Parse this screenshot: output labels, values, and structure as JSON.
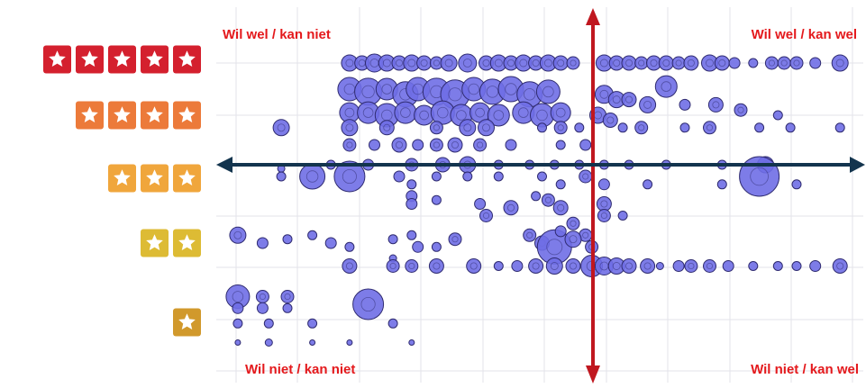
{
  "chart_data": {
    "type": "scatter",
    "title": "",
    "xlabel": "",
    "ylabel": "",
    "y_levels": [
      5,
      4,
      3,
      2,
      1
    ],
    "ylim": [
      0.5,
      5.5
    ],
    "xlim": [
      0,
      100
    ],
    "grid": true,
    "legend": "none",
    "quadrant_labels": {
      "top_left": "Wil wel / kan niet",
      "top_right": "Wil wel / kan wel",
      "bottom_left": "Wil niet / kan niet",
      "bottom_right": "Wil niet / kan wel"
    },
    "y_tick_stars": [
      {
        "level": 5,
        "stars": 5,
        "color": "#d4202e"
      },
      {
        "level": 4,
        "stars": 4,
        "color": "#ec7a3a"
      },
      {
        "level": 3,
        "stars": 3,
        "color": "#f0a63c"
      },
      {
        "level": 2,
        "stars": 2,
        "color": "#ddbb34"
      },
      {
        "level": 1,
        "stars": 1,
        "color": "#d1992c"
      }
    ],
    "dividers": {
      "vertical_x": 58.2,
      "horizontal_y": 3.0,
      "vertical_color": "#c0171f",
      "horizontal_color": "#13344e"
    },
    "bubble_color": "#6f6ee6",
    "bubble_edge": "#2f2b70",
    "points": [
      {
        "x": 19,
        "y": 5.0,
        "r": 9
      },
      {
        "x": 21,
        "y": 5.0,
        "r": 8
      },
      {
        "x": 23,
        "y": 5.0,
        "r": 10
      },
      {
        "x": 25,
        "y": 5.0,
        "r": 9
      },
      {
        "x": 27,
        "y": 5.0,
        "r": 8
      },
      {
        "x": 29,
        "y": 5.0,
        "r": 9
      },
      {
        "x": 31,
        "y": 5.0,
        "r": 8
      },
      {
        "x": 33,
        "y": 5.0,
        "r": 7
      },
      {
        "x": 35,
        "y": 5.0,
        "r": 9
      },
      {
        "x": 38,
        "y": 5.0,
        "r": 10
      },
      {
        "x": 41,
        "y": 5.0,
        "r": 8
      },
      {
        "x": 43,
        "y": 5.0,
        "r": 9
      },
      {
        "x": 45,
        "y": 5.0,
        "r": 8
      },
      {
        "x": 47,
        "y": 5.0,
        "r": 9
      },
      {
        "x": 49,
        "y": 5.0,
        "r": 8
      },
      {
        "x": 51,
        "y": 5.0,
        "r": 9
      },
      {
        "x": 53,
        "y": 5.0,
        "r": 8
      },
      {
        "x": 55,
        "y": 5.0,
        "r": 7
      },
      {
        "x": 60,
        "y": 5.0,
        "r": 9
      },
      {
        "x": 62,
        "y": 5.0,
        "r": 8
      },
      {
        "x": 64,
        "y": 5.0,
        "r": 8
      },
      {
        "x": 66,
        "y": 5.0,
        "r": 7
      },
      {
        "x": 68,
        "y": 5.0,
        "r": 8
      },
      {
        "x": 70,
        "y": 5.0,
        "r": 8
      },
      {
        "x": 72,
        "y": 5.0,
        "r": 7
      },
      {
        "x": 74,
        "y": 5.0,
        "r": 8
      },
      {
        "x": 77,
        "y": 5.0,
        "r": 9
      },
      {
        "x": 79,
        "y": 5.0,
        "r": 8
      },
      {
        "x": 81,
        "y": 5.0,
        "r": 6
      },
      {
        "x": 84,
        "y": 5.0,
        "r": 5
      },
      {
        "x": 87,
        "y": 5.0,
        "r": 7
      },
      {
        "x": 89,
        "y": 5.0,
        "r": 7
      },
      {
        "x": 91,
        "y": 5.0,
        "r": 7
      },
      {
        "x": 94,
        "y": 5.0,
        "r": 6
      },
      {
        "x": 98,
        "y": 5.0,
        "r": 9
      },
      {
        "x": 19,
        "y": 4.5,
        "r": 13
      },
      {
        "x": 22,
        "y": 4.45,
        "r": 15
      },
      {
        "x": 25,
        "y": 4.5,
        "r": 12
      },
      {
        "x": 28,
        "y": 4.4,
        "r": 14
      },
      {
        "x": 30,
        "y": 4.5,
        "r": 13
      },
      {
        "x": 33,
        "y": 4.45,
        "r": 15
      },
      {
        "x": 36,
        "y": 4.4,
        "r": 16
      },
      {
        "x": 39,
        "y": 4.5,
        "r": 13
      },
      {
        "x": 42,
        "y": 4.45,
        "r": 14
      },
      {
        "x": 45,
        "y": 4.5,
        "r": 14
      },
      {
        "x": 48,
        "y": 4.4,
        "r": 14
      },
      {
        "x": 51,
        "y": 4.45,
        "r": 13
      },
      {
        "x": 19,
        "y": 4.05,
        "r": 11
      },
      {
        "x": 22,
        "y": 4.05,
        "r": 12
      },
      {
        "x": 25,
        "y": 4.0,
        "r": 13
      },
      {
        "x": 28,
        "y": 4.05,
        "r": 12
      },
      {
        "x": 31,
        "y": 4.0,
        "r": 11
      },
      {
        "x": 34,
        "y": 4.05,
        "r": 13
      },
      {
        "x": 37,
        "y": 4.0,
        "r": 12
      },
      {
        "x": 40,
        "y": 4.05,
        "r": 11
      },
      {
        "x": 43,
        "y": 4.0,
        "r": 12
      },
      {
        "x": 47,
        "y": 4.05,
        "r": 12
      },
      {
        "x": 50,
        "y": 4.0,
        "r": 13
      },
      {
        "x": 53,
        "y": 4.05,
        "r": 11
      },
      {
        "x": 60,
        "y": 4.4,
        "r": 10
      },
      {
        "x": 62,
        "y": 4.3,
        "r": 9
      },
      {
        "x": 64,
        "y": 4.3,
        "r": 8
      },
      {
        "x": 67,
        "y": 4.2,
        "r": 9
      },
      {
        "x": 70,
        "y": 4.55,
        "r": 12
      },
      {
        "x": 73,
        "y": 4.2,
        "r": 6
      },
      {
        "x": 78,
        "y": 4.2,
        "r": 8
      },
      {
        "x": 82,
        "y": 4.1,
        "r": 7
      },
      {
        "x": 88,
        "y": 4.0,
        "r": 5
      },
      {
        "x": 59,
        "y": 4.0,
        "r": 9
      },
      {
        "x": 61,
        "y": 3.9,
        "r": 8
      },
      {
        "x": 8,
        "y": 3.75,
        "r": 9
      },
      {
        "x": 19,
        "y": 3.75,
        "r": 9
      },
      {
        "x": 25,
        "y": 3.75,
        "r": 8
      },
      {
        "x": 33,
        "y": 3.75,
        "r": 7
      },
      {
        "x": 38,
        "y": 3.75,
        "r": 9
      },
      {
        "x": 41,
        "y": 3.75,
        "r": 9
      },
      {
        "x": 50,
        "y": 3.75,
        "r": 5
      },
      {
        "x": 53,
        "y": 3.75,
        "r": 7
      },
      {
        "x": 56,
        "y": 3.75,
        "r": 5
      },
      {
        "x": 63,
        "y": 3.75,
        "r": 5
      },
      {
        "x": 66,
        "y": 3.75,
        "r": 7
      },
      {
        "x": 73,
        "y": 3.75,
        "r": 5
      },
      {
        "x": 77,
        "y": 3.75,
        "r": 7
      },
      {
        "x": 85,
        "y": 3.75,
        "r": 5
      },
      {
        "x": 90,
        "y": 3.75,
        "r": 5
      },
      {
        "x": 98,
        "y": 3.75,
        "r": 5
      },
      {
        "x": 19,
        "y": 3.4,
        "r": 7
      },
      {
        "x": 23,
        "y": 3.4,
        "r": 6
      },
      {
        "x": 27,
        "y": 3.4,
        "r": 8
      },
      {
        "x": 30,
        "y": 3.4,
        "r": 6
      },
      {
        "x": 33,
        "y": 3.4,
        "r": 7
      },
      {
        "x": 36,
        "y": 3.4,
        "r": 8
      },
      {
        "x": 40,
        "y": 3.4,
        "r": 7
      },
      {
        "x": 45,
        "y": 3.4,
        "r": 6
      },
      {
        "x": 53,
        "y": 3.4,
        "r": 5
      },
      {
        "x": 57,
        "y": 3.4,
        "r": 6
      },
      {
        "x": 8,
        "y": 2.95,
        "r": 4
      },
      {
        "x": 16,
        "y": 3.0,
        "r": 5
      },
      {
        "x": 22,
        "y": 3.0,
        "r": 6
      },
      {
        "x": 29,
        "y": 3.0,
        "r": 7
      },
      {
        "x": 34,
        "y": 3.0,
        "r": 8
      },
      {
        "x": 38,
        "y": 3.0,
        "r": 9
      },
      {
        "x": 43,
        "y": 3.0,
        "r": 5
      },
      {
        "x": 48,
        "y": 3.0,
        "r": 5
      },
      {
        "x": 52,
        "y": 3.0,
        "r": 5
      },
      {
        "x": 56,
        "y": 3.0,
        "r": 5
      },
      {
        "x": 60,
        "y": 3.0,
        "r": 5
      },
      {
        "x": 64,
        "y": 3.0,
        "r": 5
      },
      {
        "x": 70,
        "y": 3.0,
        "r": 5
      },
      {
        "x": 79,
        "y": 3.0,
        "r": 5
      },
      {
        "x": 86,
        "y": 3.0,
        "r": 9
      },
      {
        "x": 8,
        "y": 2.85,
        "r": 5
      },
      {
        "x": 13,
        "y": 2.85,
        "r": 14
      },
      {
        "x": 19,
        "y": 2.85,
        "r": 17
      },
      {
        "x": 27,
        "y": 2.85,
        "r": 6
      },
      {
        "x": 29,
        "y": 2.75,
        "r": 5
      },
      {
        "x": 33,
        "y": 2.85,
        "r": 5
      },
      {
        "x": 38,
        "y": 2.85,
        "r": 5
      },
      {
        "x": 43,
        "y": 2.85,
        "r": 5
      },
      {
        "x": 50,
        "y": 2.85,
        "r": 5
      },
      {
        "x": 53,
        "y": 2.75,
        "r": 5
      },
      {
        "x": 57,
        "y": 2.85,
        "r": 7
      },
      {
        "x": 60,
        "y": 2.75,
        "r": 6
      },
      {
        "x": 67,
        "y": 2.75,
        "r": 5
      },
      {
        "x": 79,
        "y": 2.75,
        "r": 5
      },
      {
        "x": 85,
        "y": 2.85,
        "r": 22
      },
      {
        "x": 91,
        "y": 2.75,
        "r": 5
      },
      {
        "x": 29,
        "y": 2.6,
        "r": 6
      },
      {
        "x": 33,
        "y": 2.55,
        "r": 5
      },
      {
        "x": 40,
        "y": 2.5,
        "r": 6
      },
      {
        "x": 49,
        "y": 2.6,
        "r": 5
      },
      {
        "x": 51,
        "y": 2.55,
        "r": 7
      },
      {
        "x": 53,
        "y": 2.45,
        "r": 8
      },
      {
        "x": 60,
        "y": 2.5,
        "r": 8
      },
      {
        "x": 29,
        "y": 2.5,
        "r": 6
      },
      {
        "x": 45,
        "y": 2.45,
        "r": 8
      },
      {
        "x": 55,
        "y": 2.25,
        "r": 7
      },
      {
        "x": 41,
        "y": 2.35,
        "r": 7
      },
      {
        "x": 60,
        "y": 2.35,
        "r": 7
      },
      {
        "x": 57,
        "y": 2.1,
        "r": 7
      },
      {
        "x": 63,
        "y": 2.35,
        "r": 5
      },
      {
        "x": 1,
        "y": 2.1,
        "r": 9
      },
      {
        "x": 5,
        "y": 2.0,
        "r": 6
      },
      {
        "x": 9,
        "y": 2.05,
        "r": 5
      },
      {
        "x": 13,
        "y": 2.1,
        "r": 5
      },
      {
        "x": 16,
        "y": 2.0,
        "r": 6
      },
      {
        "x": 19,
        "y": 1.95,
        "r": 5
      },
      {
        "x": 26,
        "y": 2.05,
        "r": 5
      },
      {
        "x": 30,
        "y": 1.95,
        "r": 6
      },
      {
        "x": 33,
        "y": 1.95,
        "r": 5
      },
      {
        "x": 36,
        "y": 2.05,
        "r": 7
      },
      {
        "x": 26,
        "y": 1.8,
        "r": 4
      },
      {
        "x": 29,
        "y": 2.1,
        "r": 5
      },
      {
        "x": 50,
        "y": 2.0,
        "r": 8
      },
      {
        "x": 52,
        "y": 1.95,
        "r": 19
      },
      {
        "x": 55,
        "y": 2.05,
        "r": 9
      },
      {
        "x": 48,
        "y": 2.1,
        "r": 7
      },
      {
        "x": 53,
        "y": 2.15,
        "r": 6
      },
      {
        "x": 58,
        "y": 1.95,
        "r": 7
      },
      {
        "x": 19,
        "y": 1.7,
        "r": 8
      },
      {
        "x": 26,
        "y": 1.7,
        "r": 7
      },
      {
        "x": 29,
        "y": 1.7,
        "r": 7
      },
      {
        "x": 33,
        "y": 1.7,
        "r": 8
      },
      {
        "x": 39,
        "y": 1.7,
        "r": 8
      },
      {
        "x": 43,
        "y": 1.7,
        "r": 5
      },
      {
        "x": 46,
        "y": 1.7,
        "r": 6
      },
      {
        "x": 49,
        "y": 1.7,
        "r": 8
      },
      {
        "x": 52,
        "y": 1.7,
        "r": 9
      },
      {
        "x": 55,
        "y": 1.7,
        "r": 8
      },
      {
        "x": 58,
        "y": 1.7,
        "r": 12
      },
      {
        "x": 60,
        "y": 1.7,
        "r": 10
      },
      {
        "x": 62,
        "y": 1.7,
        "r": 9
      },
      {
        "x": 64,
        "y": 1.7,
        "r": 8
      },
      {
        "x": 67,
        "y": 1.7,
        "r": 8
      },
      {
        "x": 69,
        "y": 1.7,
        "r": 4
      },
      {
        "x": 72,
        "y": 1.7,
        "r": 6
      },
      {
        "x": 74,
        "y": 1.7,
        "r": 7
      },
      {
        "x": 77,
        "y": 1.7,
        "r": 7
      },
      {
        "x": 80,
        "y": 1.7,
        "r": 6
      },
      {
        "x": 84,
        "y": 1.7,
        "r": 5
      },
      {
        "x": 88,
        "y": 1.7,
        "r": 5
      },
      {
        "x": 91,
        "y": 1.7,
        "r": 5
      },
      {
        "x": 94,
        "y": 1.7,
        "r": 6
      },
      {
        "x": 98,
        "y": 1.7,
        "r": 8
      },
      {
        "x": 1,
        "y": 1.3,
        "r": 13
      },
      {
        "x": 5,
        "y": 1.3,
        "r": 7
      },
      {
        "x": 9,
        "y": 1.3,
        "r": 7
      },
      {
        "x": 1,
        "y": 1.15,
        "r": 6
      },
      {
        "x": 5,
        "y": 1.15,
        "r": 6
      },
      {
        "x": 9,
        "y": 1.15,
        "r": 5
      },
      {
        "x": 22,
        "y": 1.2,
        "r": 17
      },
      {
        "x": 1,
        "y": 0.95,
        "r": 5
      },
      {
        "x": 6,
        "y": 0.95,
        "r": 5
      },
      {
        "x": 13,
        "y": 0.95,
        "r": 5
      },
      {
        "x": 26,
        "y": 0.95,
        "r": 5
      },
      {
        "x": 1,
        "y": 0.7,
        "r": 3
      },
      {
        "x": 6,
        "y": 0.7,
        "r": 4
      },
      {
        "x": 13,
        "y": 0.7,
        "r": 3
      },
      {
        "x": 19,
        "y": 0.7,
        "r": 3
      },
      {
        "x": 29,
        "y": 0.7,
        "r": 3
      }
    ]
  }
}
